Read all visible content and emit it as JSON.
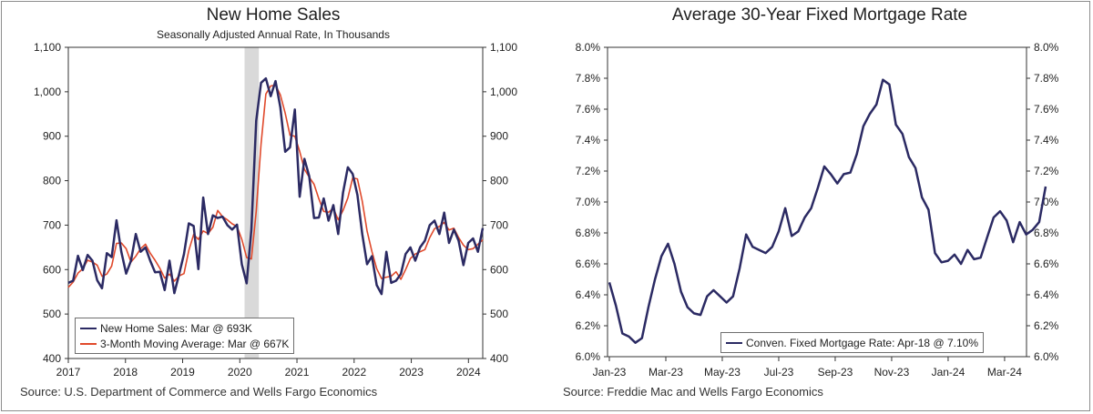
{
  "colors": {
    "navy": "#2b2a63",
    "red": "#e0492b",
    "recession": "#d9d9d9"
  },
  "left": {
    "title": "New Home Sales",
    "subtitle": "Seasonally Adjusted Annual Rate, In Thousands",
    "source": "Source: U.S. Department of Commerce and Wells Fargo Economics",
    "legend": [
      {
        "label": "New Home Sales: Mar @ 693K",
        "color": "#2b2a63"
      },
      {
        "label": "3-Month Moving Average: Mar @ 667K",
        "color": "#e0492b"
      }
    ]
  },
  "right": {
    "title": "Average 30-Year Fixed Mortgage Rate",
    "source": "Source: Freddie Mac and Wells Fargo Economics",
    "legend": [
      {
        "label": "Conven. Fixed Mortgage Rate: Apr-18 @ 7.10%",
        "color": "#2b2a63"
      }
    ]
  },
  "chart_data": [
    {
      "type": "line",
      "title": "New Home Sales",
      "subtitle": "Seasonally Adjusted Annual Rate, In Thousands",
      "xlim": [
        2017.0,
        2024.25
      ],
      "ylim": [
        400,
        1100
      ],
      "x_ticks": [
        "2017",
        "2018",
        "2019",
        "2020",
        "2021",
        "2022",
        "2023",
        "2024"
      ],
      "y_ticks": [
        "400",
        "500",
        "600",
        "700",
        "800",
        "900",
        "1,000",
        "1,100"
      ],
      "recession": [
        2020.083,
        2020.333
      ],
      "grid": false,
      "legend_position": "bottom-left",
      "series": [
        {
          "name": "New Home Sales: Mar @ 693K",
          "values": [
            570,
            575,
            631,
            599,
            633,
            620,
            576,
            558,
            637,
            628,
            711,
            640,
            591,
            620,
            680,
            640,
            650,
            620,
            594,
            595,
            554,
            620,
            547,
            590,
            635,
            704,
            698,
            601,
            762,
            680,
            722,
            716,
            719,
            700,
            690,
            701,
            612,
            569,
            690,
            935,
            1020,
            1030,
            990,
            1024,
            965,
            865,
            875,
            960,
            764,
            849,
            810,
            716,
            717,
            760,
            710,
            745,
            680,
            773,
            830,
            815,
            768,
            680,
            612,
            630,
            565,
            545,
            640,
            570,
            575,
            590,
            635,
            650,
            620,
            650,
            665,
            700,
            710,
            680,
            728,
            660,
            690,
            665,
            610,
            660,
            670,
            640,
            693
          ]
        },
        {
          "name": "3-Month Moving Average: Mar @ 667K",
          "values": [
            560,
            572,
            592,
            602,
            621,
            617,
            610,
            585,
            590,
            608,
            659,
            660,
            647,
            617,
            630,
            647,
            657,
            637,
            621,
            603,
            581,
            590,
            574,
            586,
            591,
            643,
            679,
            668,
            687,
            681,
            695,
            733,
            719,
            712,
            703,
            697,
            668,
            627,
            624,
            731,
            882,
            995,
            1013,
            1015,
            993,
            952,
            902,
            900,
            866,
            826,
            808,
            792,
            759,
            731,
            729,
            738,
            712,
            733,
            761,
            806,
            804,
            754,
            687,
            641,
            602,
            580,
            583,
            585,
            595,
            578,
            600,
            625,
            635,
            640,
            645,
            672,
            692,
            697,
            706,
            689,
            693,
            672,
            655,
            645,
            647,
            657,
            667
          ]
        }
      ]
    },
    {
      "type": "line",
      "title": "Average 30-Year Fixed Mortgage Rate",
      "x_ticks": [
        "Jan-23",
        "Mar-23",
        "May-23",
        "Jul-23",
        "Sep-23",
        "Nov-23",
        "Jan-24",
        "Mar-24"
      ],
      "ylim": [
        6.0,
        8.0
      ],
      "y_ticks": [
        "6.0%",
        "6.2%",
        "6.4%",
        "6.6%",
        "6.8%",
        "7.0%",
        "7.2%",
        "7.4%",
        "7.6%",
        "7.8%",
        "8.0%"
      ],
      "grid": false,
      "legend_position": "bottom-right",
      "series": [
        {
          "name": "Conven. Fixed Mortgage Rate: Apr-18 @ 7.10%",
          "values": [
            6.48,
            6.33,
            6.15,
            6.13,
            6.09,
            6.12,
            6.32,
            6.5,
            6.65,
            6.73,
            6.6,
            6.42,
            6.32,
            6.28,
            6.27,
            6.39,
            6.43,
            6.39,
            6.35,
            6.39,
            6.57,
            6.79,
            6.71,
            6.69,
            6.67,
            6.71,
            6.81,
            6.96,
            6.78,
            6.81,
            6.9,
            6.96,
            7.09,
            7.23,
            7.18,
            7.12,
            7.18,
            7.19,
            7.31,
            7.49,
            7.57,
            7.63,
            7.79,
            7.76,
            7.5,
            7.44,
            7.29,
            7.22,
            7.03,
            6.95,
            6.67,
            6.61,
            6.62,
            6.66,
            6.6,
            6.69,
            6.63,
            6.64,
            6.77,
            6.9,
            6.94,
            6.88,
            6.74,
            6.87,
            6.79,
            6.82,
            6.87,
            7.1
          ]
        }
      ]
    }
  ]
}
